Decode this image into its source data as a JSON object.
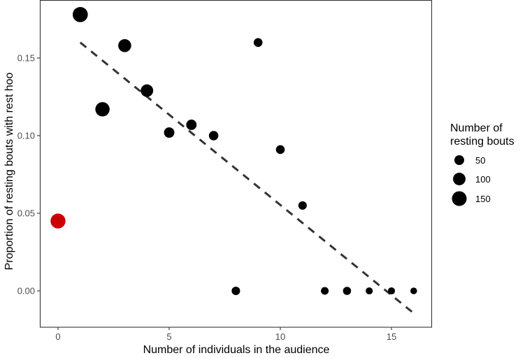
{
  "chart_data": {
    "type": "scatter",
    "title": "",
    "xlabel": "Number of individuals in the audience",
    "ylabel": "Proportion of resting bouts with rest hoo",
    "xlim": [
      -0.8,
      16.8
    ],
    "ylim": [
      -0.023,
      0.187
    ],
    "x_ticks": [
      0,
      5,
      10,
      15
    ],
    "x_tick_labels": [
      "0",
      "5",
      "10",
      "15"
    ],
    "y_ticks": [
      0.0,
      0.05,
      0.1,
      0.15
    ],
    "y_tick_labels": [
      "0.00",
      "0.05",
      "0.10",
      "0.15"
    ],
    "grid": false,
    "legend_position": "right",
    "points": [
      {
        "x": 0,
        "y": 0.045,
        "bouts": 155,
        "color": "#cc0000"
      },
      {
        "x": 1,
        "y": 0.178,
        "bouts": 160,
        "color": "#000000"
      },
      {
        "x": 2,
        "y": 0.117,
        "bouts": 140,
        "color": "#000000"
      },
      {
        "x": 3,
        "y": 0.158,
        "bouts": 110,
        "color": "#000000"
      },
      {
        "x": 4,
        "y": 0.129,
        "bouts": 100,
        "color": "#000000"
      },
      {
        "x": 5,
        "y": 0.102,
        "bouts": 60,
        "color": "#000000"
      },
      {
        "x": 6,
        "y": 0.107,
        "bouts": 60,
        "color": "#000000"
      },
      {
        "x": 7,
        "y": 0.1,
        "bouts": 45,
        "color": "#000000"
      },
      {
        "x": 8,
        "y": 0.0,
        "bouts": 30,
        "color": "#000000"
      },
      {
        "x": 9,
        "y": 0.16,
        "bouts": 35,
        "color": "#000000"
      },
      {
        "x": 10,
        "y": 0.091,
        "bouts": 35,
        "color": "#000000"
      },
      {
        "x": 11,
        "y": 0.055,
        "bouts": 30,
        "color": "#000000"
      },
      {
        "x": 12,
        "y": 0.0,
        "bouts": 20,
        "color": "#000000"
      },
      {
        "x": 13,
        "y": 0.0,
        "bouts": 25,
        "color": "#000000"
      },
      {
        "x": 14,
        "y": 0.0,
        "bouts": 12,
        "color": "#000000"
      },
      {
        "x": 15,
        "y": 0.0,
        "bouts": 12,
        "color": "#000000"
      },
      {
        "x": 16,
        "y": 0.0,
        "bouts": 8,
        "color": "#000000"
      }
    ],
    "trend_line": {
      "style": "dashed",
      "color": "#333333",
      "x": [
        1,
        16
      ],
      "y": [
        0.16,
        -0.0144
      ]
    },
    "legend": {
      "title_lines": [
        "Number of",
        "resting bouts"
      ],
      "entries": [
        {
          "label": "50",
          "value": 50
        },
        {
          "label": "100",
          "value": 100
        },
        {
          "label": "150",
          "value": 150
        }
      ]
    }
  }
}
